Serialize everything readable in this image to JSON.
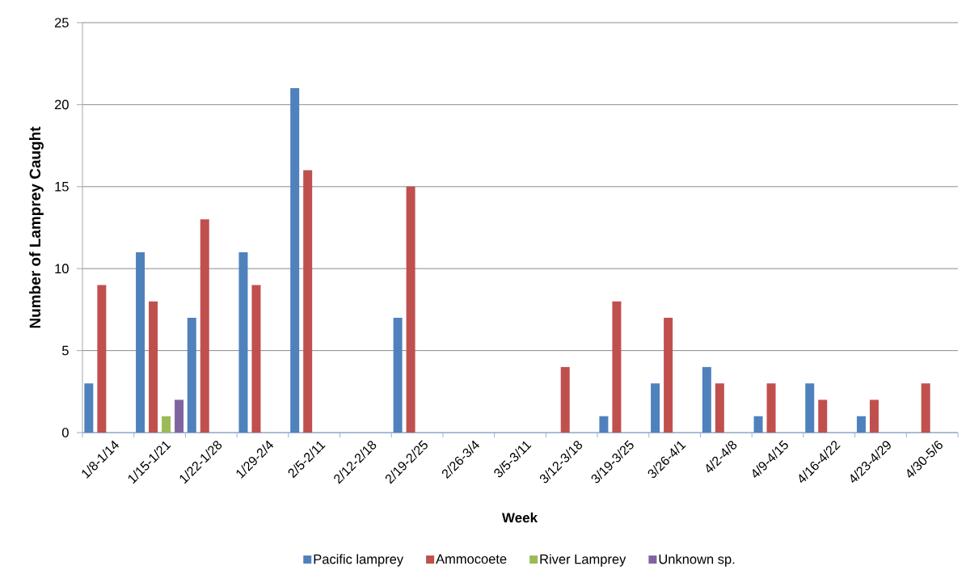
{
  "chart_data": {
    "type": "bar",
    "xlabel": "Week",
    "ylabel": "Number of Lamprey Caught",
    "categories": [
      "1/8-1/14",
      "1/15-1/21",
      "1/22-1/28",
      "1/29-2/4",
      "2/5-2/11",
      "2/12-2/18",
      "2/19-2/25",
      "2/26-3/4",
      "3/5-3/11",
      "3/12-3/18",
      "3/19-3/25",
      "3/26-4/1",
      "4/2-4/8",
      "4/9-4/15",
      "4/16-4/22",
      "4/23-4/29",
      "4/30-5/6"
    ],
    "series": [
      {
        "name": "Pacific lamprey",
        "color": "#4f81bd",
        "values": [
          3,
          11,
          7,
          11,
          21,
          null,
          7,
          null,
          null,
          null,
          1,
          3,
          4,
          1,
          3,
          1,
          null
        ]
      },
      {
        "name": "Ammocoete",
        "color": "#c0504d",
        "values": [
          9,
          8,
          13,
          9,
          16,
          null,
          15,
          null,
          null,
          4,
          8,
          7,
          3,
          3,
          2,
          2,
          3
        ]
      },
      {
        "name": "River Lamprey",
        "color": "#9bbb59",
        "values": [
          null,
          1,
          null,
          null,
          null,
          null,
          null,
          null,
          null,
          null,
          null,
          null,
          null,
          null,
          null,
          null,
          null
        ]
      },
      {
        "name": "Unknown sp.",
        "color": "#8064a2",
        "values": [
          null,
          2,
          null,
          null,
          null,
          null,
          null,
          null,
          null,
          null,
          null,
          null,
          null,
          null,
          null,
          null,
          null
        ]
      }
    ],
    "ylim": [
      0,
      25
    ],
    "yticks": [
      0,
      5,
      10,
      15,
      20,
      25
    ],
    "grid": "y",
    "legend": "bottom"
  }
}
